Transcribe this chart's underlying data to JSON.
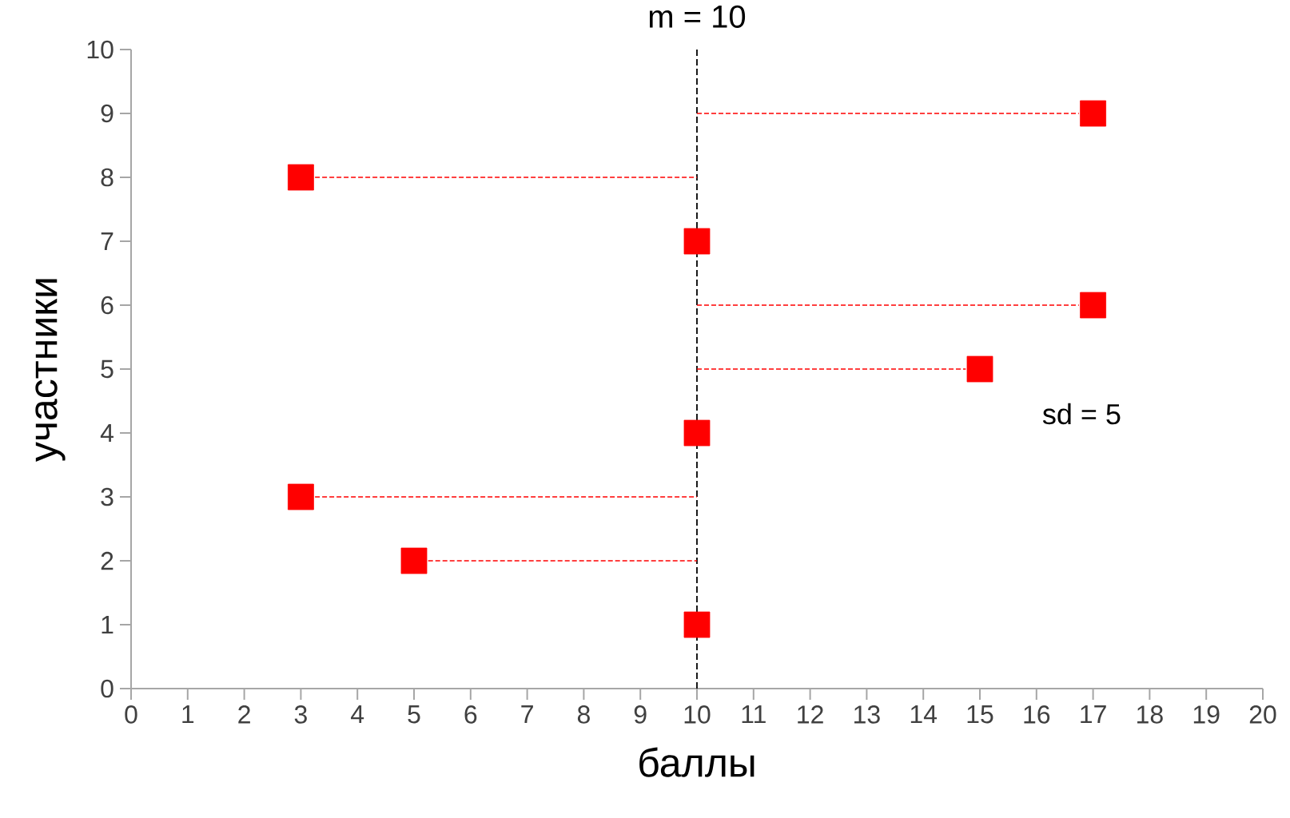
{
  "chart_data": {
    "type": "scatter",
    "xlabel": "баллы",
    "ylabel": "участники",
    "xlim": [
      0,
      20
    ],
    "xticks": [
      0,
      1,
      2,
      3,
      4,
      5,
      6,
      7,
      8,
      9,
      10,
      11,
      12,
      13,
      14,
      15,
      16,
      17,
      18,
      19,
      20
    ],
    "ylim": [
      0,
      10
    ],
    "yticks": [
      0,
      1,
      2,
      3,
      4,
      5,
      6,
      7,
      8,
      9,
      10
    ],
    "grid": false,
    "marker": "square",
    "series": [
      {
        "type": "line",
        "marker": "none",
        "line_style": "dashed",
        "color": "#ff0000",
        "x": [
          10,
          16.75
        ],
        "values": [
          9,
          9
        ]
      },
      {
        "type": "line",
        "marker": "none",
        "line_style": "dashed",
        "color": "#ff0000",
        "x": [
          3.25,
          10
        ],
        "values": [
          8,
          8
        ]
      },
      {
        "type": "line",
        "marker": "none",
        "line_style": "dashed",
        "color": "#ff0000",
        "x": [
          10,
          16.75
        ],
        "values": [
          6,
          6
        ]
      },
      {
        "type": "line",
        "marker": "none",
        "line_style": "dashed",
        "color": "#ff0000",
        "x": [
          10,
          14.75
        ],
        "values": [
          5,
          5
        ]
      },
      {
        "type": "line",
        "marker": "none",
        "line_style": "dashed",
        "color": "#ff0000",
        "x": [
          3.25,
          10
        ],
        "values": [
          3,
          3
        ]
      },
      {
        "type": "line",
        "marker": "none",
        "line_style": "dashed",
        "color": "#ff0000",
        "x": [
          5.25,
          10
        ],
        "values": [
          2,
          2
        ]
      },
      {
        "color": "#ff0000",
        "x": [
          10,
          5,
          3,
          10,
          15,
          17,
          10,
          3,
          17
        ],
        "values": [
          1,
          2,
          3,
          4,
          5,
          6,
          7,
          8,
          9
        ]
      }
    ],
    "ref_lines": [
      {
        "axis": "x",
        "value": 10,
        "label": "m = 10",
        "color": "#000000",
        "line_style": "dashed"
      }
    ],
    "annotations": [
      "sd = 5"
    ]
  }
}
